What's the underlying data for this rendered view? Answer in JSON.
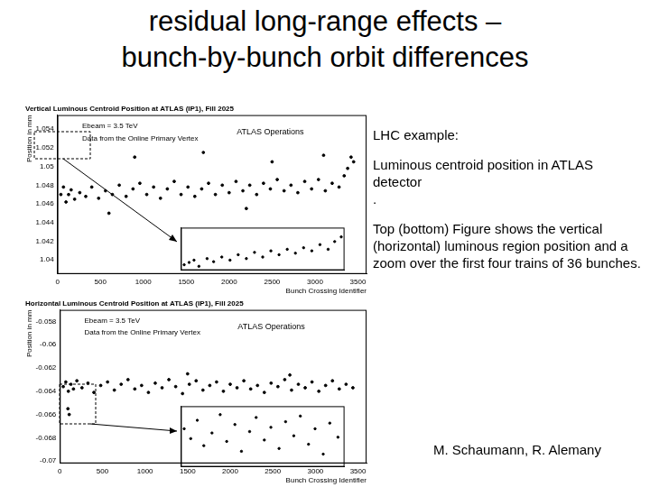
{
  "slide": {
    "title": [
      "residual long-range effects –",
      "bunch-by-bunch orbit differences"
    ],
    "text": [
      "LHC example:",
      "Luminous centroid position in ATLAS detector",
      ".",
      "Top (bottom) Figure shows the vertical (horizontal) luminous region position and a zoom over the first four trains of 36 bunches."
    ],
    "credit": "M. Schaumann, R. Alemany"
  },
  "chart_data": [
    {
      "type": "scatter",
      "title": "Vertical Luminous Centroid Position at ATLAS (IP1), Fill 2025",
      "x_label": "Bunch Crossing Identifier",
      "y_label": "Position in mm",
      "annotations": [
        "Ebeam = 3.5 TeV",
        "Data from the Online Primary Vertex",
        "ATLAS Operations"
      ],
      "x": [
        40,
        70,
        100,
        130,
        160,
        200,
        260,
        330,
        400,
        480,
        560,
        640,
        720,
        800,
        880,
        960,
        1040,
        1120,
        1200,
        1280,
        1360,
        1440,
        1520,
        1600,
        1680,
        1760,
        1840,
        1920,
        2000,
        2080,
        2160,
        2240,
        2320,
        2400,
        2480,
        2560,
        2640,
        2720,
        2800,
        2880,
        2960,
        3040,
        3120,
        3200,
        3280,
        3340,
        3380,
        3420,
        3450,
        900,
        1700,
        2500,
        3100,
        600,
        2200
      ],
      "values": [
        1.047,
        1.0478,
        1.0462,
        1.047,
        1.0475,
        1.0465,
        1.0472,
        1.0468,
        1.0478,
        1.0466,
        1.0474,
        1.047,
        1.048,
        1.0468,
        1.0476,
        1.0482,
        1.047,
        1.0478,
        1.0466,
        1.0476,
        1.0484,
        1.047,
        1.0478,
        1.0468,
        1.0476,
        1.0482,
        1.047,
        1.048,
        1.0472,
        1.0484,
        1.0474,
        1.048,
        1.047,
        1.0482,
        1.0476,
        1.0486,
        1.0474,
        1.048,
        1.0472,
        1.0484,
        1.0476,
        1.0486,
        1.0474,
        1.0482,
        1.0478,
        1.049,
        1.0498,
        1.051,
        1.0505,
        1.051,
        1.0515,
        1.0505,
        1.0512,
        1.045,
        1.0455
      ],
      "color": "#000000",
      "xlim": [
        0,
        3600
      ],
      "xticks": [
        0,
        500,
        1000,
        1500,
        2000,
        2500,
        3000,
        3500
      ],
      "ylim": [
        1.0385,
        1.0555
      ],
      "yticks": [
        1.04,
        1.042,
        1.044,
        1.046,
        1.048,
        1.05,
        1.052,
        1.054
      ],
      "grid": false
    },
    {
      "type": "scatter",
      "x": [
        10,
        25,
        40,
        55,
        80,
        100,
        125,
        150,
        175,
        200,
        225,
        250,
        275,
        300,
        325,
        350,
        375,
        400,
        425,
        450,
        470,
        490
      ],
      "values": [
        1.0452,
        1.0455,
        1.0458,
        1.045,
        1.046,
        1.0456,
        1.0462,
        1.0458,
        1.0465,
        1.046,
        1.0468,
        1.0462,
        1.047,
        1.0465,
        1.0472,
        1.0467,
        1.0474,
        1.047,
        1.0478,
        1.0472,
        1.0482,
        1.0488
      ],
      "color": "#000000",
      "xlim": [
        0,
        500
      ],
      "ylim": [
        1.0445,
        1.05
      ],
      "grid": false,
      "tick_labels": false
    },
    {
      "type": "scatter",
      "title": "Horizontal Luminous Centroid Position at ATLAS (IP1), Fill 2025",
      "x_label": "Bunch Crossing Identifier",
      "y_label": "Position in mm",
      "annotations": [
        "Ebeam = 3.5 TeV",
        "Data from the Online Primary Vertex",
        "ATLAS Operations"
      ],
      "x": [
        40,
        70,
        100,
        130,
        160,
        200,
        260,
        330,
        400,
        480,
        560,
        640,
        720,
        800,
        880,
        960,
        1040,
        1120,
        1200,
        1280,
        1360,
        1440,
        1520,
        1600,
        1680,
        1760,
        1840,
        1920,
        2000,
        2080,
        2160,
        2240,
        2320,
        2400,
        2480,
        2560,
        2640,
        2720,
        2800,
        2880,
        2960,
        3040,
        3120,
        3200,
        3280,
        3360,
        3440,
        95,
        110,
        1500,
        2700
      ],
      "values": [
        -0.0636,
        -0.0632,
        -0.064,
        -0.0634,
        -0.0638,
        -0.0631,
        -0.0637,
        -0.0633,
        -0.0641,
        -0.0635,
        -0.0632,
        -0.0639,
        -0.0634,
        -0.063,
        -0.0638,
        -0.0635,
        -0.0641,
        -0.0633,
        -0.0637,
        -0.063,
        -0.0636,
        -0.0642,
        -0.0634,
        -0.0631,
        -0.0639,
        -0.0635,
        -0.0632,
        -0.064,
        -0.0634,
        -0.0637,
        -0.0631,
        -0.0638,
        -0.0635,
        -0.0641,
        -0.0633,
        -0.0636,
        -0.063,
        -0.0639,
        -0.0634,
        -0.0637,
        -0.0632,
        -0.064,
        -0.0635,
        -0.0631,
        -0.0638,
        -0.0634,
        -0.0637,
        -0.0655,
        -0.066,
        -0.0625,
        -0.0626
      ],
      "color": "#000000",
      "xlim": [
        0,
        3600
      ],
      "xticks": [
        0,
        500,
        1000,
        1500,
        2000,
        2500,
        3000,
        3500
      ],
      "ylim": [
        -0.0702,
        -0.057
      ],
      "yticks": [
        -0.07,
        -0.068,
        -0.066,
        -0.064,
        -0.062,
        -0.06,
        -0.058
      ],
      "grid": false
    },
    {
      "type": "scatter",
      "x": [
        10,
        30,
        50,
        70,
        95,
        120,
        140,
        165,
        185,
        210,
        230,
        255,
        275,
        300,
        320,
        345,
        365,
        390,
        410,
        435,
        455,
        480
      ],
      "values": [
        -0.0668,
        -0.0675,
        -0.0662,
        -0.068,
        -0.0671,
        -0.0658,
        -0.0677,
        -0.0665,
        -0.0684,
        -0.067,
        -0.066,
        -0.0676,
        -0.0667,
        -0.0682,
        -0.0663,
        -0.0673,
        -0.0659,
        -0.0679,
        -0.0668,
        -0.0686,
        -0.0664,
        -0.0674
      ],
      "color": "#000000",
      "xlim": [
        0,
        500
      ],
      "ylim": [
        -0.0695,
        -0.0652
      ],
      "grid": false,
      "tick_labels": false
    }
  ]
}
